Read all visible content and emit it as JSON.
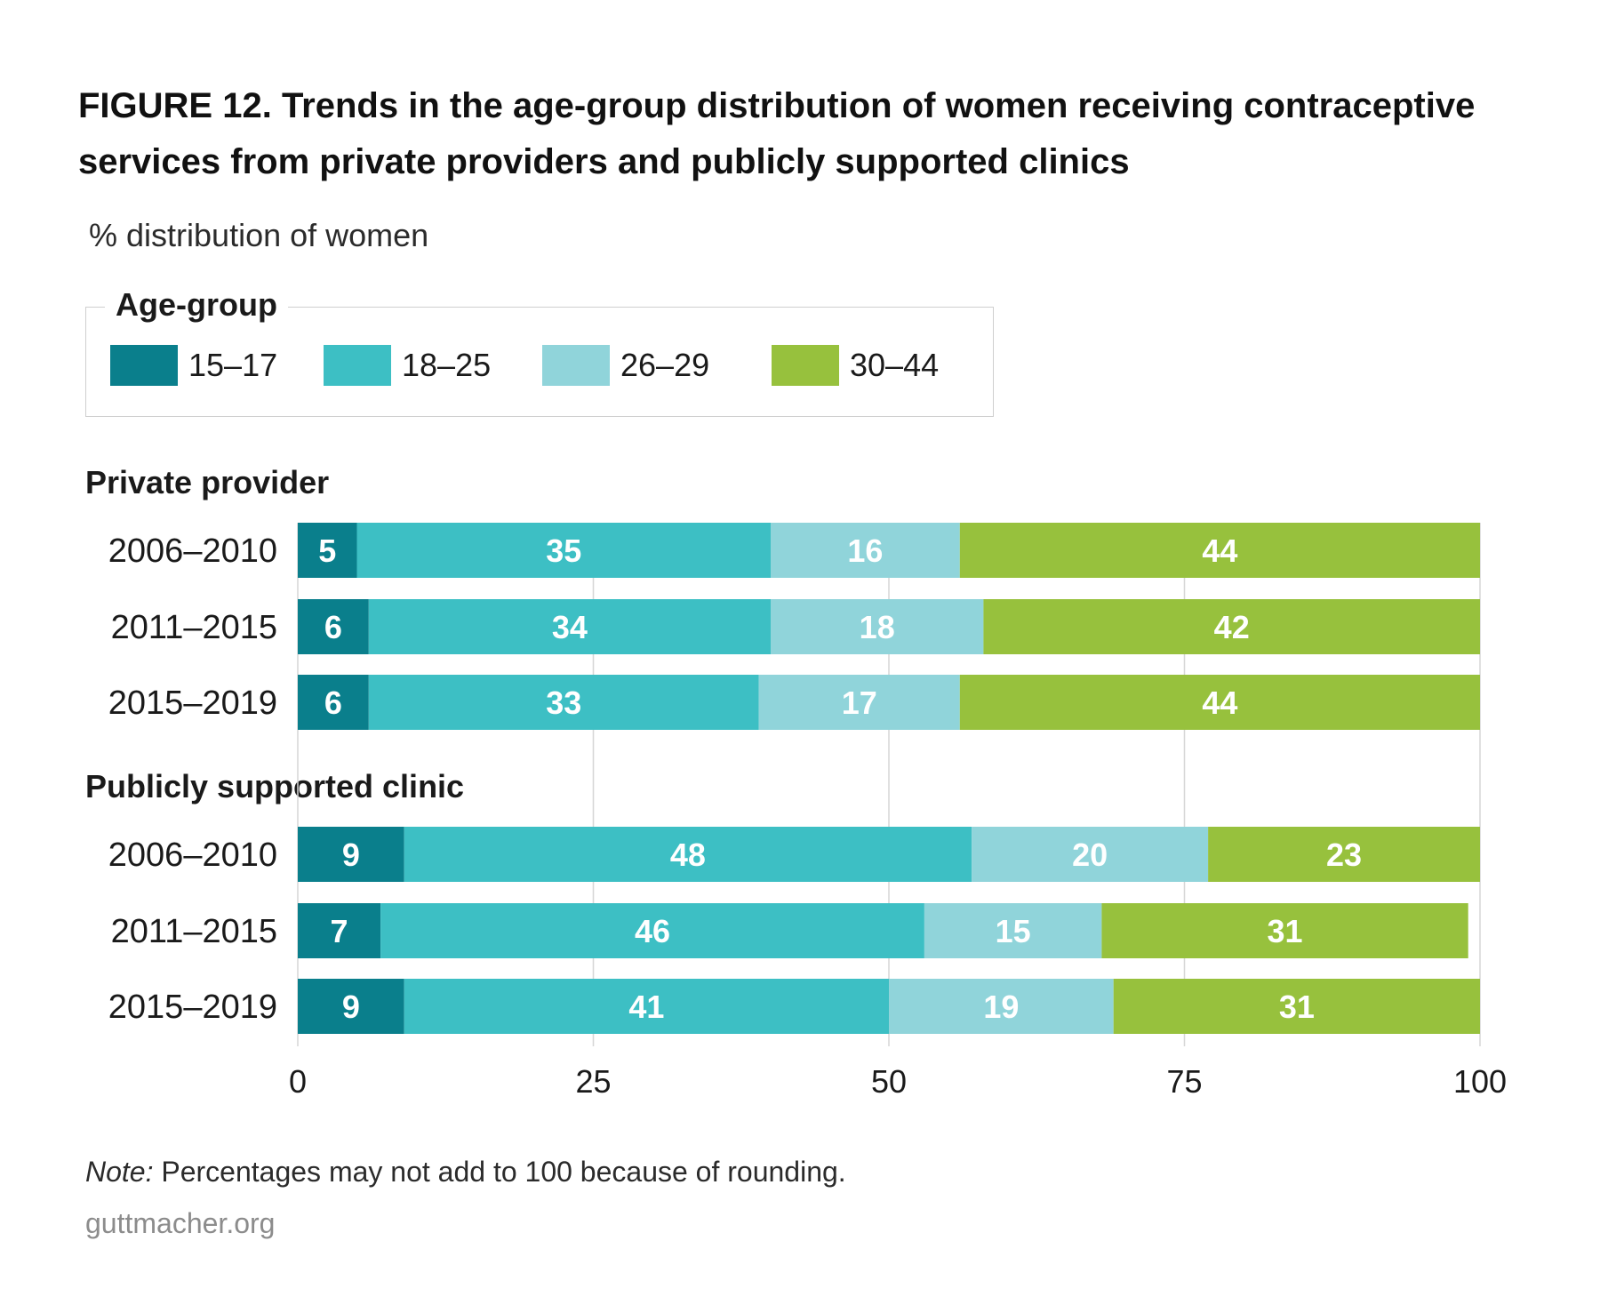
{
  "title": "FIGURE 12. Trends in the age-group distribution of women receiving contraceptive services from private providers and publicly supported clinics",
  "subtitle": "% distribution of women",
  "legend": {
    "title": "Age-group",
    "items": [
      {
        "label": "15–17",
        "color": "#0a7f8c"
      },
      {
        "label": "18–25",
        "color": "#3dbfc4"
      },
      {
        "label": "26–29",
        "color": "#90d4da"
      },
      {
        "label": "30–44",
        "color": "#97c13d"
      }
    ]
  },
  "chart_data": {
    "type": "bar",
    "orientation": "horizontal",
    "stacked": true,
    "xlim": [
      0,
      100
    ],
    "x_ticks": [
      "0",
      "25",
      "50",
      "75",
      "100"
    ],
    "gridlines": true,
    "groups": [
      {
        "name": "Private provider",
        "categories": [
          "2006–2010",
          "2011–2015",
          "2015–2019"
        ],
        "series": [
          {
            "name": "15–17",
            "values": [
              5,
              6,
              6
            ]
          },
          {
            "name": "18–25",
            "values": [
              35,
              34,
              33
            ]
          },
          {
            "name": "26–29",
            "values": [
              16,
              18,
              17
            ]
          },
          {
            "name": "30–44",
            "values": [
              44,
              42,
              44
            ]
          }
        ]
      },
      {
        "name": "Publicly supported clinic",
        "categories": [
          "2006–2010",
          "2011–2015",
          "2015–2019"
        ],
        "series": [
          {
            "name": "15–17",
            "values": [
              9,
              7,
              9
            ]
          },
          {
            "name": "18–25",
            "values": [
              48,
              46,
              41
            ]
          },
          {
            "name": "26–29",
            "values": [
              20,
              15,
              19
            ]
          },
          {
            "name": "30–44",
            "values": [
              23,
              31,
              31
            ]
          }
        ]
      }
    ]
  },
  "note": {
    "prefix": "Note:",
    "text": " Percentages may not add to 100 because of rounding."
  },
  "source": "guttmacher.org"
}
